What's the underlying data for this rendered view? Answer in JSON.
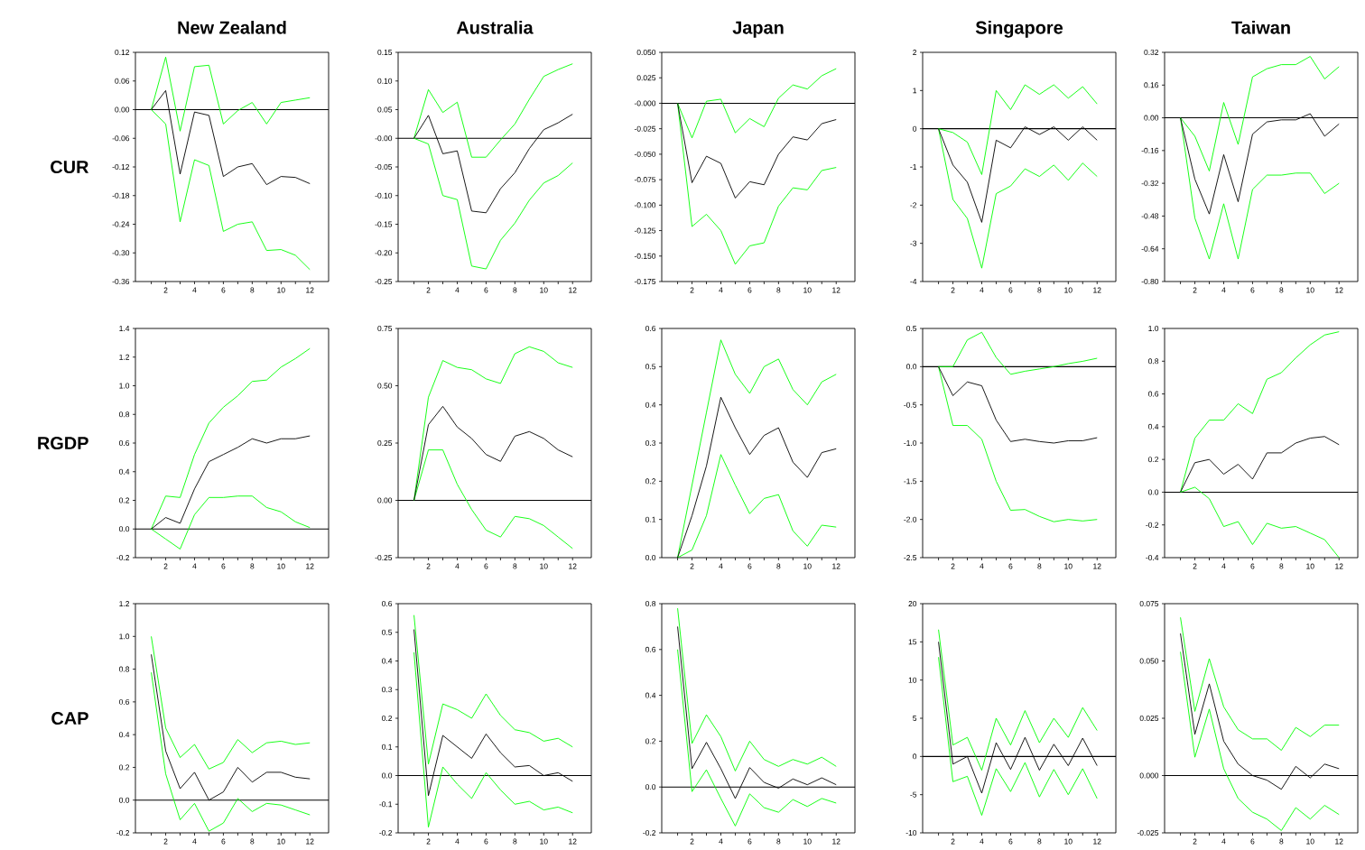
{
  "chart_data": [
    {
      "type": "line",
      "title": "New Zealand",
      "ylabel": "CUR",
      "x": [
        1,
        2,
        3,
        4,
        5,
        6,
        7,
        8,
        9,
        10,
        11,
        12
      ],
      "xlim": [
        -0.1,
        13.3
      ],
      "xticks": [
        {
          "value": 1,
          "label": null
        },
        2,
        {
          "value": 3,
          "label": null
        },
        4,
        {
          "value": 5,
          "label": null
        },
        6,
        {
          "value": 7,
          "label": null
        },
        8,
        {
          "value": 9,
          "label": null
        },
        10,
        {
          "value": 11,
          "label": null
        },
        12
      ],
      "ylim": [
        -0.36,
        0.12
      ],
      "yticks": [
        -0.36,
        {
          "value": -0.3,
          "label": "-0.30"
        },
        -0.24,
        -0.18,
        -0.12,
        -0.06,
        {
          "value": 0,
          "label": "0.00"
        },
        0.06,
        0.12
      ],
      "ref_lines": [
        {
          "axis": "y",
          "value": 0
        }
      ],
      "series": [
        {
          "color": "#00ff00",
          "values": [
            0,
            0.11,
            -0.045,
            0.09,
            0.093,
            -0.03,
            -0.002,
            0.015,
            -0.03,
            0.015,
            0.02,
            0.025
          ]
        },
        {
          "color": "#00ff00",
          "values": [
            0,
            -0.03,
            -0.235,
            -0.105,
            -0.117,
            -0.255,
            -0.24,
            -0.235,
            -0.295,
            -0.293,
            -0.305,
            -0.335
          ]
        },
        {
          "color": "#000000",
          "values": [
            0,
            0.04,
            -0.135,
            -0.005,
            -0.012,
            -0.14,
            -0.12,
            -0.113,
            -0.157,
            -0.14,
            -0.142,
            -0.155
          ]
        }
      ]
    },
    {
      "type": "line",
      "title": "Australia",
      "x": [
        1,
        2,
        3,
        4,
        5,
        6,
        7,
        8,
        9,
        10,
        11,
        12
      ],
      "xlim": [
        -0.1,
        13.3
      ],
      "xticks": [
        {
          "value": 1,
          "label": null
        },
        2,
        {
          "value": 3,
          "label": null
        },
        4,
        {
          "value": 5,
          "label": null
        },
        6,
        {
          "value": 7,
          "label": null
        },
        8,
        {
          "value": 9,
          "label": null
        },
        10,
        {
          "value": 11,
          "label": null
        },
        12
      ],
      "ylim": [
        -0.25,
        0.15
      ],
      "yticks": [
        -0.25,
        {
          "value": -0.2,
          "label": "-0.20"
        },
        -0.15,
        {
          "value": -0.1,
          "label": "-0.10"
        },
        -0.05,
        {
          "value": 0,
          "label": "-0.00"
        },
        0.05,
        {
          "value": 0.1,
          "label": "0.10"
        },
        0.15
      ],
      "ref_lines": [
        {
          "axis": "y",
          "value": 0
        }
      ],
      "series": [
        {
          "color": "#00ff00",
          "values": [
            0,
            0.085,
            0.045,
            0.063,
            -0.033,
            -0.033,
            -0.003,
            0.025,
            0.068,
            0.108,
            0.12,
            0.13
          ]
        },
        {
          "color": "#00ff00",
          "values": [
            0,
            -0.01,
            -0.1,
            -0.107,
            -0.223,
            -0.228,
            -0.178,
            -0.148,
            -0.108,
            -0.078,
            -0.065,
            -0.043
          ]
        },
        {
          "color": "#000000",
          "values": [
            0,
            0.04,
            -0.027,
            -0.022,
            -0.127,
            -0.13,
            -0.088,
            -0.06,
            -0.018,
            0.015,
            0.027,
            0.042
          ]
        }
      ]
    },
    {
      "type": "line",
      "title": "Japan",
      "x": [
        1,
        2,
        3,
        4,
        5,
        6,
        7,
        8,
        9,
        10,
        11,
        12
      ],
      "xlim": [
        -0.1,
        13.3
      ],
      "xticks": [
        {
          "value": 1,
          "label": null
        },
        2,
        {
          "value": 3,
          "label": null
        },
        4,
        {
          "value": 5,
          "label": null
        },
        6,
        {
          "value": 7,
          "label": null
        },
        8,
        {
          "value": 9,
          "label": null
        },
        10,
        {
          "value": 11,
          "label": null
        },
        12
      ],
      "ylim": [
        -0.175,
        0.05
      ],
      "yticks": [
        -0.175,
        {
          "value": -0.15,
          "label": "-0.150"
        },
        -0.125,
        {
          "value": -0.1,
          "label": "-0.100"
        },
        -0.075,
        {
          "value": -0.05,
          "label": "-0.050"
        },
        -0.025,
        {
          "value": 0,
          "label": "-0.000"
        },
        0.025,
        {
          "value": 0.05,
          "label": "0.050"
        }
      ],
      "ref_lines": [
        {
          "axis": "y",
          "value": 0
        }
      ],
      "series": [
        {
          "color": "#00ff00",
          "values": [
            0,
            -0.034,
            0.002,
            0.004,
            -0.029,
            -0.015,
            -0.023,
            0.005,
            0.018,
            0.014,
            0.027,
            0.034
          ]
        },
        {
          "color": "#00ff00",
          "values": [
            0,
            -0.121,
            -0.109,
            -0.125,
            -0.158,
            -0.14,
            -0.137,
            -0.101,
            -0.083,
            -0.085,
            -0.066,
            -0.063
          ]
        },
        {
          "color": "#000000",
          "values": [
            0,
            -0.078,
            -0.052,
            -0.059,
            -0.093,
            -0.077,
            -0.08,
            -0.05,
            -0.033,
            -0.036,
            -0.02,
            -0.016
          ]
        }
      ]
    },
    {
      "type": "line",
      "title": "Singapore",
      "x": [
        1,
        2,
        3,
        4,
        5,
        6,
        7,
        8,
        9,
        10,
        11,
        12
      ],
      "xlim": [
        -0.1,
        13.3
      ],
      "xticks": [
        {
          "value": 1,
          "label": null
        },
        2,
        {
          "value": 3,
          "label": null
        },
        4,
        {
          "value": 5,
          "label": null
        },
        6,
        {
          "value": 7,
          "label": null
        },
        8,
        {
          "value": 9,
          "label": null
        },
        10,
        {
          "value": 11,
          "label": null
        },
        12
      ],
      "ylim": [
        -4,
        2
      ],
      "yticks": [
        -4,
        -3,
        -2,
        -1,
        0,
        1,
        2
      ],
      "ref_lines": [
        {
          "axis": "y",
          "value": 0
        }
      ],
      "series": [
        {
          "color": "#00ff00",
          "values": [
            0,
            -0.1,
            -0.35,
            -1.2,
            1.0,
            0.5,
            1.15,
            0.9,
            1.15,
            0.8,
            1.1,
            0.65
          ]
        },
        {
          "color": "#00ff00",
          "values": [
            0,
            -1.85,
            -2.35,
            -3.65,
            -1.7,
            -1.5,
            -1.05,
            -1.25,
            -0.95,
            -1.35,
            -0.9,
            -1.25
          ]
        },
        {
          "color": "#000000",
          "values": [
            0,
            -0.95,
            -1.4,
            -2.45,
            -0.3,
            -0.5,
            0.05,
            -0.15,
            0.05,
            -0.3,
            0.05,
            -0.3
          ]
        }
      ]
    },
    {
      "type": "line",
      "title": "Taiwan",
      "x": [
        1,
        2,
        3,
        4,
        5,
        6,
        7,
        8,
        9,
        10,
        11,
        12
      ],
      "xlim": [
        -0.1,
        13.3
      ],
      "xticks": [
        {
          "value": 1,
          "label": null
        },
        2,
        {
          "value": 3,
          "label": null
        },
        4,
        {
          "value": 5,
          "label": null
        },
        6,
        {
          "value": 7,
          "label": null
        },
        8,
        {
          "value": 9,
          "label": null
        },
        10,
        {
          "value": 11,
          "label": null
        },
        12
      ],
      "ylim": [
        -0.8,
        0.32
      ],
      "yticks": [
        {
          "value": -0.8,
          "label": "-0.80"
        },
        -0.64,
        -0.48,
        -0.32,
        -0.16,
        {
          "value": 0,
          "label": "0.00"
        },
        0.16,
        0.32
      ],
      "ref_lines": [
        {
          "axis": "y",
          "value": 0
        }
      ],
      "series": [
        {
          "color": "#00ff00",
          "values": [
            0,
            -0.09,
            -0.26,
            0.075,
            -0.13,
            0.2,
            0.24,
            0.26,
            0.26,
            0.3,
            0.19,
            0.25
          ]
        },
        {
          "color": "#00ff00",
          "values": [
            0,
            -0.49,
            -0.69,
            -0.42,
            -0.69,
            -0.35,
            -0.28,
            -0.28,
            -0.27,
            -0.27,
            -0.37,
            -0.32
          ]
        },
        {
          "color": "#000000",
          "values": [
            0,
            -0.3,
            -0.47,
            -0.18,
            -0.41,
            -0.08,
            -0.02,
            -0.01,
            -0.01,
            0.02,
            -0.09,
            -0.03
          ]
        }
      ]
    },
    {
      "type": "line",
      "ylabel": "RGDP",
      "x": [
        1,
        2,
        3,
        4,
        5,
        6,
        7,
        8,
        9,
        10,
        11,
        12
      ],
      "xlim": [
        -0.1,
        13.3
      ],
      "xticks": [
        {
          "value": 1,
          "label": null
        },
        2,
        {
          "value": 3,
          "label": null
        },
        4,
        {
          "value": 5,
          "label": null
        },
        6,
        {
          "value": 7,
          "label": null
        },
        8,
        {
          "value": 9,
          "label": null
        },
        10,
        {
          "value": 11,
          "label": null
        },
        12
      ],
      "ylim": [
        -0.2,
        1.4
      ],
      "yticks": [
        -0.2,
        {
          "value": 0,
          "label": "0.0"
        },
        0.2,
        0.4,
        0.6,
        0.8,
        {
          "value": 1,
          "label": "1.0"
        },
        1.2,
        1.4
      ],
      "ref_lines": [
        {
          "axis": "y",
          "value": 0
        }
      ],
      "series": [
        {
          "color": "#00ff00",
          "values": [
            0,
            0.23,
            0.22,
            0.52,
            0.74,
            0.85,
            0.93,
            1.03,
            1.04,
            1.13,
            1.19,
            1.26
          ]
        },
        {
          "color": "#00ff00",
          "values": [
            0,
            -0.07,
            -0.14,
            0.1,
            0.22,
            0.22,
            0.23,
            0.23,
            0.15,
            0.12,
            0.05,
            0.01
          ]
        },
        {
          "color": "#000000",
          "values": [
            0,
            0.08,
            0.04,
            0.28,
            0.47,
            0.52,
            0.57,
            0.63,
            0.6,
            0.63,
            0.63,
            0.65
          ]
        }
      ]
    },
    {
      "type": "line",
      "x": [
        1,
        2,
        3,
        4,
        5,
        6,
        7,
        8,
        9,
        10,
        11,
        12
      ],
      "xlim": [
        -0.1,
        13.3
      ],
      "xticks": [
        {
          "value": 1,
          "label": null
        },
        2,
        {
          "value": 3,
          "label": null
        },
        4,
        {
          "value": 5,
          "label": null
        },
        6,
        {
          "value": 7,
          "label": null
        },
        8,
        {
          "value": 9,
          "label": null
        },
        10,
        {
          "value": 11,
          "label": null
        },
        12
      ],
      "ylim": [
        -0.25,
        0.75
      ],
      "yticks": [
        -0.25,
        {
          "value": 0,
          "label": "0.00"
        },
        0.25,
        {
          "value": 0.5,
          "label": "0.50"
        },
        0.75
      ],
      "ref_lines": [
        {
          "axis": "y",
          "value": 0
        }
      ],
      "series": [
        {
          "color": "#00ff00",
          "values": [
            0,
            0.45,
            0.61,
            0.58,
            0.57,
            0.53,
            0.51,
            0.64,
            0.67,
            0.65,
            0.6,
            0.58
          ]
        },
        {
          "color": "#00ff00",
          "values": [
            0,
            0.22,
            0.22,
            0.07,
            -0.04,
            -0.13,
            -0.16,
            -0.07,
            -0.08,
            -0.11,
            -0.16,
            -0.21
          ]
        },
        {
          "color": "#000000",
          "values": [
            0,
            0.33,
            0.41,
            0.32,
            0.27,
            0.2,
            0.17,
            0.28,
            0.3,
            0.27,
            0.22,
            0.19
          ]
        }
      ]
    },
    {
      "type": "line",
      "x": [
        1,
        2,
        3,
        4,
        5,
        6,
        7,
        8,
        9,
        10,
        11,
        12
      ],
      "xlim": [
        -0.1,
        13.3
      ],
      "xticks": [
        {
          "value": 1,
          "label": null
        },
        2,
        {
          "value": 3,
          "label": null
        },
        4,
        {
          "value": 5,
          "label": null
        },
        6,
        {
          "value": 7,
          "label": null
        },
        8,
        {
          "value": 9,
          "label": null
        },
        10,
        {
          "value": 11,
          "label": null
        },
        12
      ],
      "ylim": [
        0,
        0.6
      ],
      "yticks": [
        {
          "value": 0,
          "label": "0.0"
        },
        0.1,
        0.2,
        0.3,
        0.4,
        0.5,
        0.6
      ],
      "series": [
        {
          "color": "#00ff00",
          "values": [
            0,
            0.19,
            0.38,
            0.57,
            0.48,
            0.43,
            0.5,
            0.52,
            0.44,
            0.4,
            0.46,
            0.48
          ]
        },
        {
          "color": "#00ff00",
          "values": [
            0,
            0.02,
            0.11,
            0.27,
            0.19,
            0.115,
            0.155,
            0.165,
            0.07,
            0.03,
            0.085,
            0.08
          ]
        },
        {
          "color": "#000000",
          "values": [
            0,
            0.11,
            0.24,
            0.42,
            0.34,
            0.27,
            0.32,
            0.34,
            0.25,
            0.21,
            0.275,
            0.285
          ]
        }
      ]
    },
    {
      "type": "line",
      "x": [
        1,
        2,
        3,
        4,
        5,
        6,
        7,
        8,
        9,
        10,
        11,
        12
      ],
      "xlim": [
        -0.1,
        13.3
      ],
      "xticks": [
        {
          "value": 1,
          "label": null
        },
        2,
        {
          "value": 3,
          "label": null
        },
        4,
        {
          "value": 5,
          "label": null
        },
        6,
        {
          "value": 7,
          "label": null
        },
        8,
        {
          "value": 9,
          "label": null
        },
        10,
        {
          "value": 11,
          "label": null
        },
        12
      ],
      "ylim": [
        -2.5,
        0.5
      ],
      "yticks": [
        -2.5,
        {
          "value": -2,
          "label": "-2.0"
        },
        -1.5,
        {
          "value": -1,
          "label": "-1.0"
        },
        -0.5,
        {
          "value": 0,
          "label": "0.0"
        },
        0.5
      ],
      "ref_lines": [
        {
          "axis": "y",
          "value": 0
        }
      ],
      "series": [
        {
          "color": "#00ff00",
          "values": [
            0,
            0,
            0.35,
            0.45,
            0.12,
            -0.1,
            -0.06,
            -0.03,
            0,
            0.04,
            0.07,
            0.11
          ]
        },
        {
          "color": "#00ff00",
          "values": [
            0,
            -0.77,
            -0.77,
            -0.95,
            -1.5,
            -1.88,
            -1.87,
            -1.96,
            -2.03,
            -2.0,
            -2.02,
            -2.0
          ]
        },
        {
          "color": "#000000",
          "values": [
            0,
            -0.38,
            -0.2,
            -0.25,
            -0.7,
            -0.98,
            -0.95,
            -0.98,
            -1.0,
            -0.97,
            -0.97,
            -0.93
          ]
        }
      ]
    },
    {
      "type": "line",
      "x": [
        1,
        2,
        3,
        4,
        5,
        6,
        7,
        8,
        9,
        10,
        11,
        12
      ],
      "xlim": [
        -0.1,
        13.3
      ],
      "xticks": [
        {
          "value": 1,
          "label": null
        },
        2,
        {
          "value": 3,
          "label": null
        },
        4,
        {
          "value": 5,
          "label": null
        },
        6,
        {
          "value": 7,
          "label": null
        },
        8,
        {
          "value": 9,
          "label": null
        },
        10,
        {
          "value": 11,
          "label": null
        },
        12
      ],
      "ylim": [
        -0.4,
        1.0
      ],
      "yticks": [
        -0.4,
        -0.2,
        {
          "value": 0,
          "label": "0.0"
        },
        0.2,
        0.4,
        0.6,
        0.8,
        {
          "value": 1,
          "label": "1.0"
        }
      ],
      "ref_lines": [
        {
          "axis": "y",
          "value": 0
        }
      ],
      "series": [
        {
          "color": "#00ff00",
          "values": [
            0,
            0.33,
            0.44,
            0.44,
            0.54,
            0.48,
            0.69,
            0.73,
            0.82,
            0.9,
            0.96,
            0.98
          ]
        },
        {
          "color": "#00ff00",
          "values": [
            0,
            0.03,
            -0.04,
            -0.21,
            -0.18,
            -0.32,
            -0.19,
            -0.22,
            -0.21,
            -0.25,
            -0.29,
            -0.4
          ]
        },
        {
          "color": "#000000",
          "values": [
            0,
            0.18,
            0.2,
            0.11,
            0.17,
            0.08,
            0.24,
            0.24,
            0.3,
            0.33,
            0.34,
            0.29
          ]
        }
      ]
    },
    {
      "type": "line",
      "ylabel": "CAP",
      "x": [
        1,
        2,
        3,
        4,
        5,
        6,
        7,
        8,
        9,
        10,
        11,
        12
      ],
      "xlim": [
        -0.1,
        13.3
      ],
      "xticks": [
        {
          "value": 1,
          "label": null
        },
        2,
        {
          "value": 3,
          "label": null
        },
        4,
        {
          "value": 5,
          "label": null
        },
        6,
        {
          "value": 7,
          "label": null
        },
        8,
        {
          "value": 9,
          "label": null
        },
        10,
        {
          "value": 11,
          "label": null
        },
        12
      ],
      "ylim": [
        -0.2,
        1.2
      ],
      "yticks": [
        -0.2,
        {
          "value": 0,
          "label": "0.0"
        },
        0.2,
        0.4,
        0.6,
        0.8,
        {
          "value": 1,
          "label": "1.0"
        },
        1.2
      ],
      "ref_lines": [
        {
          "axis": "y",
          "value": 0
        }
      ],
      "series": [
        {
          "color": "#00ff00",
          "values": [
            1.0,
            0.44,
            0.26,
            0.34,
            0.19,
            0.23,
            0.37,
            0.29,
            0.35,
            0.36,
            0.34,
            0.35
          ]
        },
        {
          "color": "#00ff00",
          "values": [
            0.78,
            0.16,
            -0.12,
            -0.02,
            -0.19,
            -0.14,
            0.01,
            -0.07,
            -0.02,
            -0.03,
            -0.06,
            -0.09
          ]
        },
        {
          "color": "#000000",
          "values": [
            0.89,
            0.3,
            0.07,
            0.17,
            0.0,
            0.05,
            0.2,
            0.11,
            0.17,
            0.17,
            0.14,
            0.13
          ]
        }
      ]
    },
    {
      "type": "line",
      "x": [
        1,
        2,
        3,
        4,
        5,
        6,
        7,
        8,
        9,
        10,
        11,
        12
      ],
      "xlim": [
        -0.1,
        13.3
      ],
      "xticks": [
        {
          "value": 1,
          "label": null
        },
        2,
        {
          "value": 3,
          "label": null
        },
        4,
        {
          "value": 5,
          "label": null
        },
        6,
        {
          "value": 7,
          "label": null
        },
        8,
        {
          "value": 9,
          "label": null
        },
        10,
        {
          "value": 11,
          "label": null
        },
        12
      ],
      "ylim": [
        -0.2,
        0.6
      ],
      "yticks": [
        -0.2,
        -0.1,
        {
          "value": 0,
          "label": "0.0"
        },
        0.1,
        0.2,
        0.3,
        0.4,
        0.5,
        0.6
      ],
      "ref_lines": [
        {
          "axis": "y",
          "value": 0
        }
      ],
      "series": [
        {
          "color": "#00ff00",
          "values": [
            0.56,
            0.04,
            0.25,
            0.23,
            0.2,
            0.285,
            0.21,
            0.16,
            0.15,
            0.12,
            0.13,
            0.1
          ]
        },
        {
          "color": "#00ff00",
          "values": [
            0.43,
            -0.18,
            0.03,
            -0.03,
            -0.08,
            0.01,
            -0.05,
            -0.1,
            -0.09,
            -0.12,
            -0.11,
            -0.13
          ]
        },
        {
          "color": "#000000",
          "values": [
            0.51,
            -0.07,
            0.14,
            0.1,
            0.06,
            0.145,
            0.08,
            0.03,
            0.035,
            0.0,
            0.01,
            -0.02
          ]
        }
      ]
    },
    {
      "type": "line",
      "x": [
        1,
        2,
        3,
        4,
        5,
        6,
        7,
        8,
        9,
        10,
        11,
        12
      ],
      "xlim": [
        -0.1,
        13.3
      ],
      "xticks": [
        {
          "value": 1,
          "label": null
        },
        2,
        {
          "value": 3,
          "label": null
        },
        4,
        {
          "value": 5,
          "label": null
        },
        6,
        {
          "value": 7,
          "label": null
        },
        8,
        {
          "value": 9,
          "label": null
        },
        10,
        {
          "value": 11,
          "label": null
        },
        12
      ],
      "ylim": [
        -0.2,
        0.8
      ],
      "yticks": [
        -0.2,
        {
          "value": 0,
          "label": "0.0"
        },
        0.2,
        0.4,
        0.6,
        0.8
      ],
      "ref_lines": [
        {
          "axis": "y",
          "value": 0
        }
      ],
      "series": [
        {
          "color": "#00ff00",
          "values": [
            0.78,
            0.19,
            0.315,
            0.22,
            0.07,
            0.2,
            0.12,
            0.09,
            0.12,
            0.1,
            0.13,
            0.09
          ]
        },
        {
          "color": "#00ff00",
          "values": [
            0.6,
            -0.02,
            0.075,
            -0.05,
            -0.17,
            -0.03,
            -0.09,
            -0.11,
            -0.055,
            -0.085,
            -0.05,
            -0.07
          ]
        },
        {
          "color": "#000000",
          "values": [
            0.7,
            0.08,
            0.195,
            0.08,
            -0.05,
            0.085,
            0.02,
            -0.005,
            0.035,
            0.01,
            0.04,
            0.01
          ]
        }
      ]
    },
    {
      "type": "line",
      "x": [
        1,
        2,
        3,
        4,
        5,
        6,
        7,
        8,
        9,
        10,
        11,
        12
      ],
      "xlim": [
        -0.1,
        13.3
      ],
      "xticks": [
        {
          "value": 1,
          "label": null
        },
        2,
        {
          "value": 3,
          "label": null
        },
        4,
        {
          "value": 5,
          "label": null
        },
        6,
        {
          "value": 7,
          "label": null
        },
        8,
        {
          "value": 9,
          "label": null
        },
        10,
        {
          "value": 11,
          "label": null
        },
        12
      ],
      "ylim": [
        -10,
        20
      ],
      "yticks": [
        -10,
        -5,
        0,
        5,
        10,
        15,
        20
      ],
      "ref_lines": [
        {
          "axis": "y",
          "value": 0
        }
      ],
      "series": [
        {
          "color": "#00ff00",
          "values": [
            16.6,
            1.5,
            2.5,
            -1.8,
            5,
            1.5,
            6,
            1.8,
            5,
            2.5,
            6.4,
            3.4
          ]
        },
        {
          "color": "#00ff00",
          "values": [
            13,
            -3.3,
            -2.6,
            -7.7,
            -1.6,
            -4.6,
            -0.8,
            -5.3,
            -1.7,
            -5,
            -1.6,
            -5.5
          ]
        },
        {
          "color": "#000000",
          "values": [
            15,
            -1,
            0,
            -4.8,
            1.8,
            -1.7,
            2.5,
            -1.8,
            1.6,
            -1.2,
            2.4,
            -1.2
          ]
        }
      ]
    },
    {
      "type": "line",
      "x": [
        1,
        2,
        3,
        4,
        5,
        6,
        7,
        8,
        9,
        10,
        11,
        12
      ],
      "xlim": [
        -0.1,
        13.3
      ],
      "xticks": [
        {
          "value": 1,
          "label": null
        },
        2,
        {
          "value": 3,
          "label": null
        },
        4,
        {
          "value": 5,
          "label": null
        },
        6,
        {
          "value": 7,
          "label": null
        },
        8,
        {
          "value": 9,
          "label": null
        },
        10,
        {
          "value": 11,
          "label": null
        },
        12
      ],
      "ylim": [
        -0.025,
        0.075
      ],
      "yticks": [
        -0.025,
        {
          "value": 0,
          "label": "0.000"
        },
        0.025,
        {
          "value": 0.05,
          "label": "0.050"
        },
        0.075
      ],
      "ref_lines": [
        {
          "axis": "y",
          "value": 0
        }
      ],
      "series": [
        {
          "color": "#00ff00",
          "values": [
            0.069,
            0.028,
            0.051,
            0.03,
            0.02,
            0.016,
            0.016,
            0.011,
            0.021,
            0.017,
            0.022,
            0.022
          ]
        },
        {
          "color": "#00ff00",
          "values": [
            0.054,
            0.008,
            0.029,
            0.003,
            -0.01,
            -0.016,
            -0.019,
            -0.024,
            -0.014,
            -0.019,
            -0.013,
            -0.017
          ]
        },
        {
          "color": "#000000",
          "values": [
            0.062,
            0.018,
            0.04,
            0.015,
            0.005,
            0.0,
            -0.002,
            -0.006,
            0.004,
            -0.001,
            0.005,
            0.003
          ]
        }
      ]
    }
  ]
}
